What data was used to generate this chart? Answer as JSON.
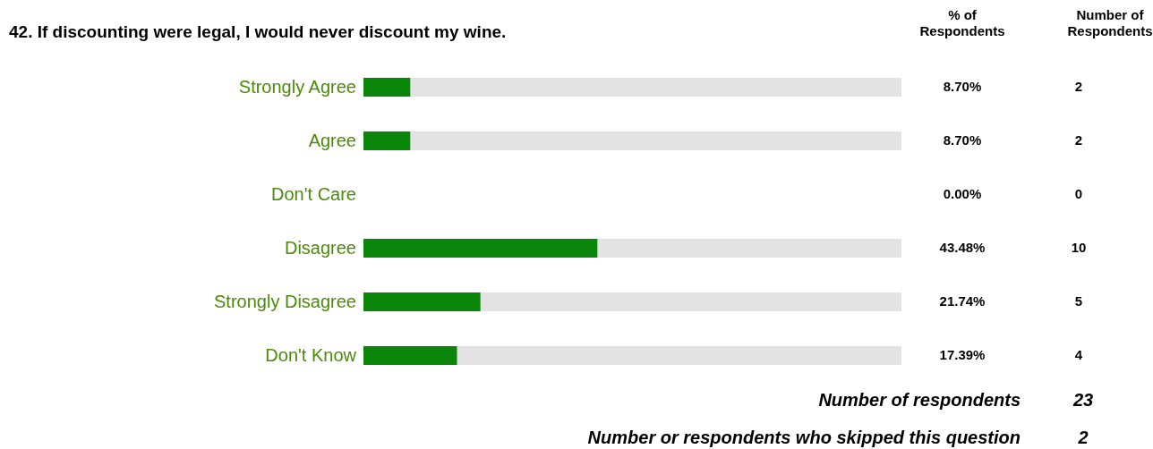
{
  "chart_data": {
    "type": "bar",
    "orientation": "horizontal",
    "title": "42. If discounting were legal, I would never discount my wine.",
    "categories": [
      "Strongly Agree",
      "Agree",
      "Don't Care",
      "Disagree",
      "Strongly Disagree",
      "Don't Know"
    ],
    "values": [
      8.7,
      8.7,
      0.0,
      43.48,
      21.74,
      17.39
    ],
    "color": "#0a860a",
    "value_labels": [
      "8.70%",
      "8.70%",
      "0.00%",
      "43.48%",
      "21.74%",
      "17.39%"
    ],
    "xlim": [
      0,
      100
    ],
    "tick_labels": false,
    "annotations": [
      "% of Respondents",
      "Number of Respondents",
      "2",
      "2",
      "0",
      "10",
      "5",
      "4",
      "Number of respondents",
      "23",
      "Number or respondents who skipped this question",
      "2"
    ]
  }
}
